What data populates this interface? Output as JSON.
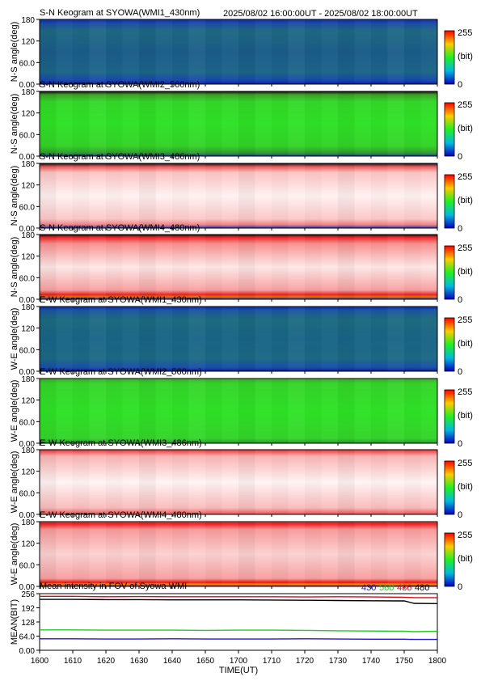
{
  "header": {
    "time_range": "2025/08/02 16:00:00UT - 2025/08/02 18:00:00UT"
  },
  "chart_data": [
    {
      "type": "heatmap",
      "title": "S-N Keogram at SYOWA(WMI1_430nm)",
      "ylabel": "N-S angle(deg)",
      "yticks": [
        "180",
        "120",
        "60.0",
        "0.00"
      ],
      "ylim": [
        0,
        180
      ],
      "colorscale": "blue",
      "cbar": {
        "max": "255",
        "unit": "(bit)",
        "min": "0"
      }
    },
    {
      "type": "heatmap",
      "title": "S-N Keogram at SYOWA(WMI2_560nm)",
      "ylabel": "N-S angle(deg)",
      "yticks": [
        "180",
        "120",
        "60.0",
        "0.00"
      ],
      "ylim": [
        0,
        180
      ],
      "colorscale": "green",
      "cbar": {
        "max": "255",
        "unit": "(bit)",
        "min": "0"
      }
    },
    {
      "type": "heatmap",
      "title": "S-N Keogram at SYOWA(WMI3_486nm)",
      "ylabel": "N-S angle(deg)",
      "yticks": [
        "180",
        "120",
        "60.0",
        "0.00"
      ],
      "ylim": [
        0,
        180
      ],
      "colorscale": "white-red",
      "cbar": {
        "max": "255",
        "unit": "(bit)",
        "min": "0"
      }
    },
    {
      "type": "heatmap",
      "title": "S-N Keogram at SYOWA(WMI4_480nm)",
      "ylabel": "N-S angle(deg)",
      "yticks": [
        "180",
        "120",
        "60.0",
        "0.00"
      ],
      "ylim": [
        0,
        180
      ],
      "colorscale": "red",
      "cbar": {
        "max": "255",
        "unit": "(bit)",
        "min": "0"
      }
    },
    {
      "type": "heatmap",
      "title": "E-W Keogram at SYOWA(WMI1_430nm)",
      "ylabel": "W-E angle(deg)",
      "yticks": [
        "180",
        "120",
        "60.0",
        "0.00"
      ],
      "ylim": [
        0,
        180
      ],
      "colorscale": "blue",
      "cbar": {
        "max": "255",
        "unit": "(bit)",
        "min": "0"
      }
    },
    {
      "type": "heatmap",
      "title": "E-W Keogram at SYOWA(WMI2_560nm)",
      "ylabel": "W-E angle(deg)",
      "yticks": [
        "180",
        "120",
        "60.0",
        "0.00"
      ],
      "ylim": [
        0,
        180
      ],
      "colorscale": "green",
      "cbar": {
        "max": "255",
        "unit": "(bit)",
        "min": "0"
      }
    },
    {
      "type": "heatmap",
      "title": "E-W Keogram at SYOWA(WMI3_486nm)",
      "ylabel": "W-E angle(deg)",
      "yticks": [
        "180",
        "120",
        "60.0",
        "0.00"
      ],
      "ylim": [
        0,
        180
      ],
      "colorscale": "white-red",
      "cbar": {
        "max": "255",
        "unit": "(bit)",
        "min": "0"
      }
    },
    {
      "type": "heatmap",
      "title": "E-W Keogram at SYOWA(WMI4_480nm)",
      "ylabel": "W-E angle(deg)",
      "yticks": [
        "180",
        "120",
        "60.0",
        "0.00"
      ],
      "ylim": [
        0,
        180
      ],
      "colorscale": "red",
      "cbar": {
        "max": "255",
        "unit": "(bit)",
        "min": "0"
      }
    },
    {
      "type": "line",
      "title": "Mean intensity in FOV of Syowa WMI",
      "ylabel": "MEAN(BIT)",
      "xlabel": "TIME(UT)",
      "yticks": [
        "256",
        "192",
        "128",
        "64.0",
        "0.00"
      ],
      "ylim": [
        0,
        256
      ],
      "x": [
        1600,
        1610,
        1620,
        1630,
        1640,
        1650,
        1700,
        1710,
        1720,
        1730,
        1740,
        1750,
        1753,
        1800
      ],
      "xticks": [
        "1600",
        "1610",
        "1620",
        "1630",
        "1640",
        "1650",
        "1700",
        "1710",
        "1720",
        "1730",
        "1740",
        "1750",
        "1800"
      ],
      "series": [
        {
          "name": "430",
          "color": "#1a1ad0",
          "values": [
            52,
            52,
            51,
            51,
            52,
            51,
            51,
            51,
            52,
            51,
            50,
            50,
            49,
            49
          ]
        },
        {
          "name": "560",
          "color": "#22cc22",
          "values": [
            92,
            92,
            91,
            91,
            91,
            90,
            91,
            91,
            90,
            88,
            87,
            86,
            84,
            86
          ]
        },
        {
          "name": "486",
          "color": "#d01010",
          "values": [
            244,
            244,
            242,
            243,
            242,
            242,
            242,
            242,
            241,
            242,
            241,
            240,
            238,
            238
          ]
        },
        {
          "name": "480",
          "color": "#000000",
          "values": [
            230,
            230,
            229,
            229,
            228,
            228,
            228,
            227,
            226,
            225,
            224,
            223,
            212,
            211
          ]
        }
      ]
    }
  ]
}
